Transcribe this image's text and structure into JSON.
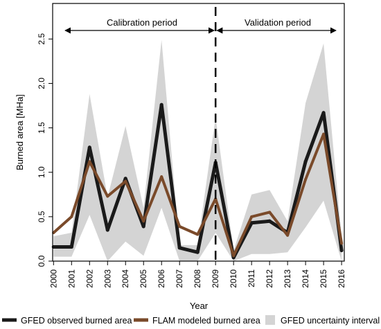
{
  "chart_data": {
    "type": "line",
    "xlabel": "Year",
    "ylabel": "Burned area [MHa]",
    "x": [
      2000,
      2001,
      2002,
      2003,
      2004,
      2005,
      2006,
      2007,
      2008,
      2009,
      2010,
      2011,
      2012,
      2013,
      2014,
      2015,
      2016
    ],
    "xlim": [
      1999.95,
      2016.15
    ],
    "ylim": [
      0,
      2.9
    ],
    "yticks": [
      "0.0",
      "0.5",
      "1.0",
      "1.5",
      "2.0",
      "2.5"
    ],
    "divider_year": 2009,
    "period_labels": {
      "calibration": "Calibration period",
      "validation": "Validation period"
    },
    "uncertainty": {
      "name": "GFED uncertainty interval",
      "color": "#d4d4d4",
      "upper": [
        0.28,
        0.32,
        1.88,
        0.72,
        1.52,
        0.6,
        2.49,
        0.18,
        0.18,
        1.62,
        0.12,
        0.75,
        0.8,
        0.45,
        1.78,
        2.45,
        0.28
      ],
      "lower": [
        0.05,
        0.05,
        0.52,
        0.0,
        0.22,
        0.06,
        0.6,
        0.0,
        0.0,
        0.32,
        0.0,
        0.08,
        0.08,
        0.1,
        0.38,
        0.68,
        0.0
      ]
    },
    "series": [
      {
        "name": "GFED observed burned area",
        "color": "#1a1a1a",
        "values": [
          0.16,
          0.16,
          1.28,
          0.35,
          0.93,
          0.39,
          1.76,
          0.15,
          0.1,
          1.11,
          0.04,
          0.43,
          0.45,
          0.32,
          1.12,
          1.67,
          0.12
        ]
      },
      {
        "name": "FLAM modeled burned area",
        "color": "#7a4a2a",
        "values": [
          0.32,
          0.5,
          1.12,
          0.73,
          0.9,
          0.45,
          0.95,
          0.39,
          0.3,
          0.7,
          0.06,
          0.5,
          0.55,
          0.29,
          0.92,
          1.43,
          0.2
        ]
      }
    ],
    "legend_position": "bottom"
  }
}
